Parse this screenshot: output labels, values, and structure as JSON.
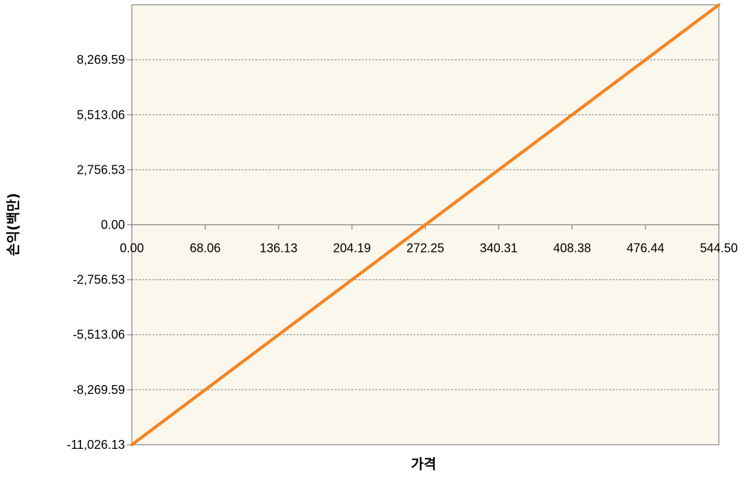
{
  "chart_data": {
    "type": "line",
    "title": "",
    "xlabel": "가격",
    "ylabel": "손익(백만)",
    "xlim": [
      0,
      544.5
    ],
    "ylim": [
      -11026.13,
      11026.13
    ],
    "x_ticks": [
      0,
      68.06,
      136.13,
      204.19,
      272.25,
      340.31,
      408.38,
      476.44,
      544.5
    ],
    "x_tick_labels": [
      "0.00",
      "68.06",
      "136.13",
      "204.19",
      "272.25",
      "340.31",
      "408.38",
      "476.44",
      "544.50"
    ],
    "y_ticks": [
      -11026.13,
      -8269.59,
      -5513.06,
      -2756.53,
      0,
      2756.53,
      5513.06,
      8269.59
    ],
    "y_tick_labels": [
      "-11,026.13",
      "-8,269.59",
      "-5,513.06",
      "-2,756.53",
      "0.00",
      "2,756.53",
      "5,513.06",
      "8,269.59"
    ],
    "grid": true,
    "legend": "none",
    "series": [
      {
        "x": [
          0,
          544.5
        ],
        "y": [
          -11026.13,
          11026.13
        ],
        "color": "#f5841f"
      }
    ],
    "colors": {
      "plot_background": "#fbf7ed",
      "grid": "#7f7f7f",
      "line": "#f5841f"
    }
  }
}
